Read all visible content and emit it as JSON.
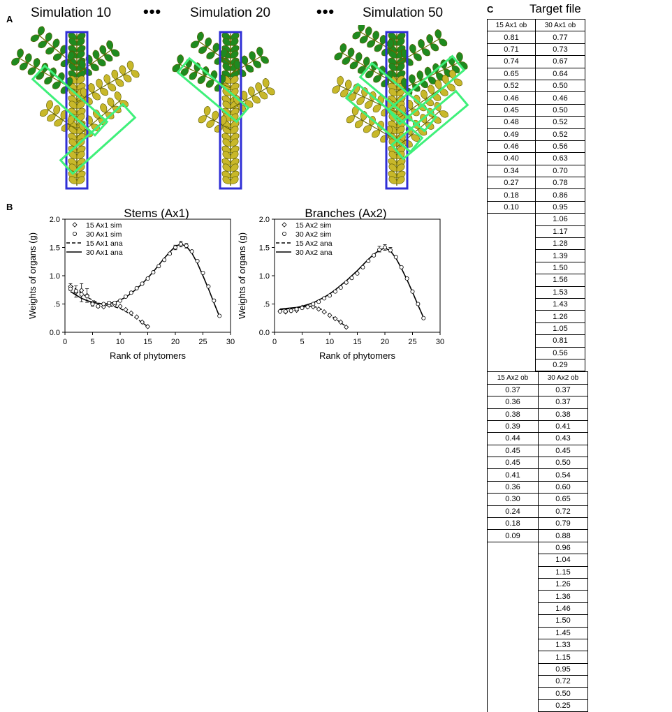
{
  "panels": {
    "a": "A",
    "b": "B",
    "c": "C"
  },
  "simulations": {
    "titles": [
      "Simulation 10",
      "Simulation 20",
      "Simulation 50"
    ],
    "separator": "•••"
  },
  "colors": {
    "leaf_green": "#1f8a1f",
    "leaf_yellow": "#c8b82a",
    "box_blue": "#2f2fd6",
    "box_green": "#3ff07a"
  },
  "chart_data": [
    {
      "type": "scatter",
      "title": "Stems (Ax1)",
      "xlabel": "Rank of phytomers",
      "ylabel": "Weights of organs (g)",
      "xlim": [
        0,
        30
      ],
      "ylim": [
        0,
        2.0
      ],
      "xticks": [
        "0",
        "5",
        "10",
        "15",
        "20",
        "25",
        "30"
      ],
      "yticks": [
        "0.0",
        ".5",
        "1.0",
        "1.5",
        "2.0"
      ],
      "legend": [
        "15 Ax1 sim",
        "30 Ax1 sim",
        "15 Ax1 ana",
        "30 Ax1 ana"
      ],
      "legend_position": "top-left",
      "series": [
        {
          "name": "15 Ax1 sim",
          "marker": "diamond",
          "x": [
            1,
            2,
            3,
            4,
            5,
            6,
            7,
            8,
            9,
            10,
            11,
            12,
            13,
            14,
            15
          ],
          "y": [
            0.81,
            0.71,
            0.74,
            0.65,
            0.52,
            0.46,
            0.45,
            0.48,
            0.49,
            0.46,
            0.4,
            0.34,
            0.27,
            0.18,
            0.1
          ]
        },
        {
          "name": "30 Ax1 sim",
          "marker": "circle",
          "x": [
            1,
            2,
            3,
            4,
            5,
            6,
            7,
            8,
            9,
            10,
            11,
            12,
            13,
            14,
            15,
            16,
            17,
            18,
            19,
            20,
            21,
            22,
            23,
            24,
            25,
            26,
            27,
            28
          ],
          "y": [
            0.77,
            0.73,
            0.67,
            0.64,
            0.5,
            0.46,
            0.5,
            0.52,
            0.52,
            0.56,
            0.63,
            0.7,
            0.78,
            0.86,
            0.95,
            1.06,
            1.17,
            1.28,
            1.39,
            1.5,
            1.56,
            1.53,
            1.43,
            1.26,
            1.05,
            0.81,
            0.56,
            0.29
          ]
        },
        {
          "name": "15 Ax1 ana",
          "line": "dashed",
          "x": [
            1,
            2,
            3,
            4,
            5,
            6,
            7,
            8,
            9,
            10,
            11,
            12,
            13,
            14,
            15
          ],
          "y": [
            0.84,
            0.76,
            0.69,
            0.62,
            0.57,
            0.52,
            0.49,
            0.47,
            0.45,
            0.42,
            0.37,
            0.31,
            0.24,
            0.17,
            0.1
          ]
        },
        {
          "name": "30 Ax1 ana",
          "line": "solid",
          "x": [
            1,
            2,
            3,
            4,
            5,
            6,
            7,
            8,
            9,
            10,
            11,
            12,
            13,
            14,
            15,
            16,
            17,
            18,
            19,
            20,
            21,
            22,
            23,
            24,
            25,
            26,
            27,
            28
          ],
          "y": [
            0.72,
            0.66,
            0.6,
            0.56,
            0.53,
            0.51,
            0.5,
            0.51,
            0.53,
            0.57,
            0.62,
            0.69,
            0.77,
            0.86,
            0.96,
            1.07,
            1.19,
            1.31,
            1.42,
            1.52,
            1.56,
            1.52,
            1.4,
            1.22,
            1.0,
            0.77,
            0.52,
            0.28
          ]
        }
      ],
      "error_bars": {
        "x": [
          1,
          2,
          3,
          4,
          5,
          8,
          20,
          21,
          22
        ],
        "y": [
          0.8,
          0.72,
          0.7,
          0.65,
          0.5,
          0.5,
          1.5,
          1.56,
          1.53
        ],
        "err": [
          0.06,
          0.1,
          0.16,
          0.12,
          0.04,
          0.04,
          0.04,
          0.05,
          0.04
        ]
      }
    },
    {
      "type": "scatter",
      "title": "Branches (Ax2)",
      "xlabel": "Rank of phytomers",
      "ylabel": "Weights of organs (g)",
      "xlim": [
        0,
        30
      ],
      "ylim": [
        0,
        2.0
      ],
      "xticks": [
        "0",
        "5",
        "10",
        "15",
        "20",
        "25",
        "30"
      ],
      "yticks": [
        "0.0",
        ".5",
        "1.0",
        "1.5",
        "2.0"
      ],
      "legend": [
        "15 Ax2 sim",
        "30 Ax2 sim",
        "15 Ax2 ana",
        "30 Ax2 ana"
      ],
      "legend_position": "top-left",
      "series": [
        {
          "name": "15 Ax2 sim",
          "marker": "diamond",
          "x": [
            1,
            2,
            3,
            4,
            5,
            6,
            7,
            8,
            9,
            10,
            11,
            12,
            13
          ],
          "y": [
            0.37,
            0.36,
            0.38,
            0.39,
            0.44,
            0.45,
            0.45,
            0.41,
            0.36,
            0.3,
            0.24,
            0.18,
            0.09
          ]
        },
        {
          "name": "30 Ax2 sim",
          "marker": "circle",
          "x": [
            1,
            2,
            3,
            4,
            5,
            6,
            7,
            8,
            9,
            10,
            11,
            12,
            13,
            14,
            15,
            16,
            17,
            18,
            19,
            20,
            21,
            22,
            23,
            24,
            25,
            26,
            27
          ],
          "y": [
            0.37,
            0.37,
            0.38,
            0.41,
            0.43,
            0.45,
            0.5,
            0.54,
            0.6,
            0.65,
            0.72,
            0.79,
            0.88,
            0.96,
            1.04,
            1.15,
            1.26,
            1.36,
            1.46,
            1.5,
            1.45,
            1.33,
            1.15,
            0.95,
            0.72,
            0.5,
            0.25
          ]
        },
        {
          "name": "15 Ax2 ana",
          "line": "dashed",
          "x": [
            1,
            2,
            3,
            4,
            5,
            6,
            7,
            8,
            9,
            10,
            11,
            12,
            13
          ],
          "y": [
            0.4,
            0.41,
            0.42,
            0.43,
            0.45,
            0.46,
            0.46,
            0.43,
            0.38,
            0.31,
            0.24,
            0.17,
            0.1
          ]
        },
        {
          "name": "30 Ax2 ana",
          "line": "solid",
          "x": [
            1,
            2,
            3,
            4,
            5,
            6,
            7,
            8,
            9,
            10,
            11,
            12,
            13,
            14,
            15,
            16,
            17,
            18,
            19,
            20,
            21,
            22,
            23,
            24,
            25,
            26,
            27
          ],
          "y": [
            0.41,
            0.42,
            0.43,
            0.44,
            0.46,
            0.49,
            0.52,
            0.57,
            0.62,
            0.68,
            0.75,
            0.83,
            0.91,
            1.0,
            1.09,
            1.19,
            1.29,
            1.38,
            1.45,
            1.49,
            1.44,
            1.31,
            1.13,
            0.93,
            0.71,
            0.48,
            0.26
          ]
        }
      ],
      "error_bars": {
        "x": [
          19,
          20,
          21
        ],
        "y": [
          1.47,
          1.5,
          1.46
        ],
        "err": [
          0.05,
          0.05,
          0.04
        ]
      }
    }
  ],
  "target_file": {
    "title": "Target file",
    "headers": [
      "15 Ax1 ob",
      "30 Ax1 ob",
      "15 Ax2 ob",
      "30 Ax2 ob"
    ],
    "cols": [
      [
        "0.81",
        "0.71",
        "0.74",
        "0.65",
        "0.52",
        "0.46",
        "0.45",
        "0.48",
        "0.49",
        "0.46",
        "0.40",
        "0.34",
        "0.27",
        "0.18",
        "0.10"
      ],
      [
        "0.77",
        "0.73",
        "0.67",
        "0.64",
        "0.50",
        "0.46",
        "0.50",
        "0.52",
        "0.52",
        "0.56",
        "0.63",
        "0.70",
        "0.78",
        "0.86",
        "0.95",
        "1.06",
        "1.17",
        "1.28",
        "1.39",
        "1.50",
        "1.56",
        "1.53",
        "1.43",
        "1.26",
        "1.05",
        "0.81",
        "0.56",
        "0.29"
      ],
      [
        "0.37",
        "0.36",
        "0.38",
        "0.39",
        "0.44",
        "0.45",
        "0.45",
        "0.41",
        "0.36",
        "0.30",
        "0.24",
        "0.18",
        "0.09"
      ],
      [
        "0.37",
        "0.37",
        "0.38",
        "0.41",
        "0.43",
        "0.45",
        "0.50",
        "0.54",
        "0.60",
        "0.65",
        "0.72",
        "0.79",
        "0.88",
        "0.96",
        "1.04",
        "1.15",
        "1.26",
        "1.36",
        "1.46",
        "1.50",
        "1.45",
        "1.33",
        "1.15",
        "0.95",
        "0.72",
        "0.50",
        "0.25"
      ]
    ]
  }
}
